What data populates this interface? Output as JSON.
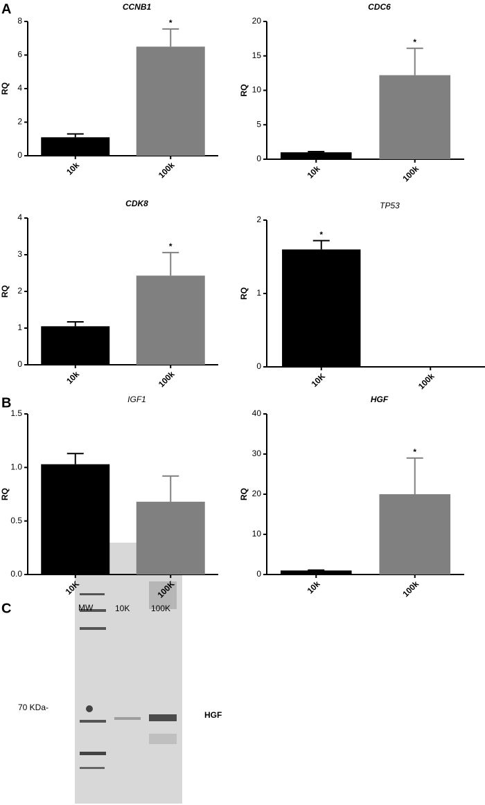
{
  "panels": [
    "A",
    "B"
  ],
  "chart_data": [
    {
      "type": "bar",
      "title": "CCNB1",
      "title_weight": "bold",
      "y_label": "RQ",
      "categories": [
        "10k",
        "100k"
      ],
      "values": [
        1.1,
        6.5
      ],
      "errors": [
        0.2,
        1.05
      ],
      "significance": [
        null,
        "*"
      ],
      "colors": [
        "#000000",
        "#808080"
      ],
      "ylim": [
        0,
        8
      ],
      "yticks": [
        0,
        2,
        4,
        6,
        8
      ]
    },
    {
      "type": "bar",
      "title": "CDC6",
      "title_weight": "bold",
      "y_label": "RQ",
      "categories": [
        "10k",
        "100k"
      ],
      "values": [
        1.0,
        12.2
      ],
      "errors": [
        0.1,
        3.9
      ],
      "significance": [
        null,
        "*"
      ],
      "colors": [
        "#000000",
        "#808080"
      ],
      "ylim": [
        0,
        20
      ],
      "yticks": [
        0,
        5,
        10,
        15,
        20
      ]
    },
    {
      "type": "bar",
      "title": "CDK8",
      "title_weight": "bold",
      "y_label": "RQ",
      "categories": [
        "10k",
        "100k"
      ],
      "values": [
        1.05,
        2.43
      ],
      "errors": [
        0.12,
        0.63
      ],
      "significance": [
        null,
        "*"
      ],
      "colors": [
        "#000000",
        "#808080"
      ],
      "ylim": [
        0,
        4
      ],
      "yticks": [
        0,
        1,
        2,
        3,
        4
      ]
    },
    {
      "type": "bar",
      "title": "TP53",
      "title_weight": "normal",
      "y_label": "RQ",
      "categories": [
        "10K",
        "100k"
      ],
      "values": [
        1.6,
        0
      ],
      "errors": [
        0.12,
        0
      ],
      "significance": [
        "*",
        null
      ],
      "colors": [
        "#000000",
        "#808080"
      ],
      "ylim": [
        0,
        2
      ],
      "yticks": [
        0,
        1,
        2
      ]
    },
    {
      "type": "bar",
      "title": "IGF1",
      "title_weight": "normal",
      "y_label": "RQ",
      "categories": [
        "10K",
        "100K"
      ],
      "values": [
        1.03,
        0.68
      ],
      "errors": [
        0.1,
        0.24
      ],
      "significance": [
        null,
        null
      ],
      "colors": [
        "#000000",
        "#808080"
      ],
      "ylim": [
        0,
        1.5
      ],
      "yticks": [
        {
          "value": 0,
          "label": "0.0"
        },
        0.5,
        {
          "value": 1,
          "label": "1.0"
        },
        1.5
      ]
    },
    {
      "type": "bar",
      "title": "HGF",
      "title_weight": "bold",
      "y_label": "RQ",
      "categories": [
        "10k",
        "100k"
      ],
      "values": [
        1.0,
        20
      ],
      "errors": [
        0.1,
        9
      ],
      "significance": [
        null,
        "*"
      ],
      "colors": [
        "#000000",
        "#808080"
      ],
      "ylim": [
        0,
        40
      ],
      "yticks": [
        0,
        10,
        20,
        30,
        40
      ]
    }
  ],
  "blot": {
    "panel": "C",
    "lanes": [
      "MW",
      "10K",
      "100K"
    ],
    "marker": "70 KDa-",
    "label": "HGF"
  }
}
